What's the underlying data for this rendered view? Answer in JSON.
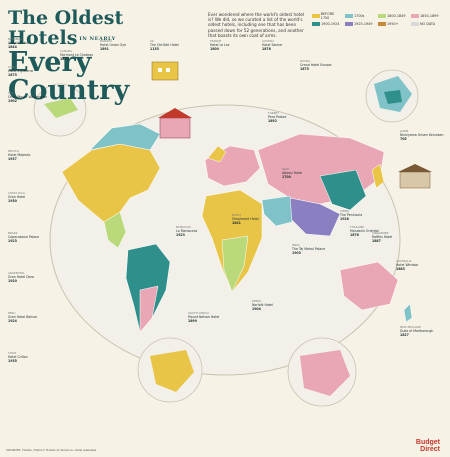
{
  "title": {
    "line1": "The Oldest Hotels",
    "small": "IN NEARLY",
    "line2": "Every Country"
  },
  "intro": "Ever wondered where the world's oldest hotel is? We did, so we curated a list of the world's oldest hotels, including one that has been passed down for 52 generations, and another that boasts its own coat of arms.",
  "legend": [
    {
      "label": "BEFORE 1700",
      "color": "#e8c547"
    },
    {
      "label": "1700s",
      "color": "#7fc3c9"
    },
    {
      "label": "1800-1849",
      "color": "#b9d97a"
    },
    {
      "label": "1850-1899",
      "color": "#e9a6b4"
    },
    {
      "label": "1900-1924",
      "color": "#2f8f8a"
    },
    {
      "label": "1925-1949",
      "color": "#8a7fc0"
    },
    {
      "label": "1950+",
      "color": "#c48b3a"
    },
    {
      "label": "NO DATA",
      "color": "#d9d9d9"
    }
  ],
  "labels": [
    {
      "country": "BAHAMAS",
      "hotel": "Graycliff Hotel",
      "year": "1844"
    },
    {
      "country": "CUBA",
      "hotel": "Hotel Inglaterra",
      "year": "1875"
    },
    {
      "country": "USA",
      "hotel": "Omni Mount Washington",
      "year": "1902"
    },
    {
      "country": "CANADA",
      "hotel": "Fairmont Le Chateau",
      "year": "1893"
    },
    {
      "country": "MEXICO",
      "hotel": "Hotel Majestic",
      "year": "1937"
    },
    {
      "country": "COSTA RICA",
      "hotel": "Gran Hotel",
      "year": "1930"
    },
    {
      "country": "BRAZIL",
      "hotel": "Copacabana Palace",
      "year": "1923"
    },
    {
      "country": "ARGENTINA",
      "hotel": "Gran Hotel Dora",
      "year": "1920"
    },
    {
      "country": "PERU",
      "hotel": "Gran Hotel Bolivar",
      "year": "1924"
    },
    {
      "country": "CHILE",
      "hotel": "Hotel Crillon",
      "year": "1935"
    },
    {
      "country": "NORWAY",
      "hotel": "Hotel Union Oye",
      "year": "1891"
    },
    {
      "country": "UK",
      "hotel": "The Old Bell Hotel",
      "year": "1135"
    },
    {
      "country": "FRANCE",
      "hotel": "Hotel Le Lac",
      "year": "1800"
    },
    {
      "country": "AUSTRIA",
      "hotel": "Hotel Sacher",
      "year": "1876"
    },
    {
      "country": "RUSSIA",
      "hotel": "Grand Hotel Europe",
      "year": "1875"
    },
    {
      "country": "CHINA",
      "hotel": "The Peninsula",
      "year": "1928"
    },
    {
      "country": "JAPAN",
      "hotel": "Nishiyama Onsen Keiunkan",
      "year": "705"
    },
    {
      "country": "INDIA",
      "hotel": "The Taj Mahal Palace",
      "year": "1903"
    },
    {
      "country": "EGYPT",
      "hotel": "Shepheard Hotel",
      "year": "1841"
    },
    {
      "country": "KENYA",
      "hotel": "Norfolk Hotel",
      "year": "1904"
    },
    {
      "country": "SOUTH AFRICA",
      "hotel": "Mount Nelson Hotel",
      "year": "1899"
    },
    {
      "country": "AUSTRALIA",
      "hotel": "Hotel Windsor",
      "year": "1883"
    },
    {
      "country": "NEW ZEALAND",
      "hotel": "Duke of Marlborough",
      "year": "1827"
    },
    {
      "country": "SINGAPORE",
      "hotel": "Raffles Hotel",
      "year": "1887"
    },
    {
      "country": "THAILAND",
      "hotel": "Mandarin Oriental",
      "year": "1876"
    },
    {
      "country": "TURKEY",
      "hotel": "Pera Palace",
      "year": "1892"
    },
    {
      "country": "MOROCCO",
      "hotel": "La Mamounia",
      "year": "1923"
    },
    {
      "country": "IRAN",
      "hotel": "Abbasi Hotel",
      "year": "1700"
    }
  ],
  "footer": {
    "sources": "SOURCES: Hotels, Historic Hotels of America, hotel websites",
    "brand_line1": "Budget",
    "brand_line2": "Direct"
  }
}
